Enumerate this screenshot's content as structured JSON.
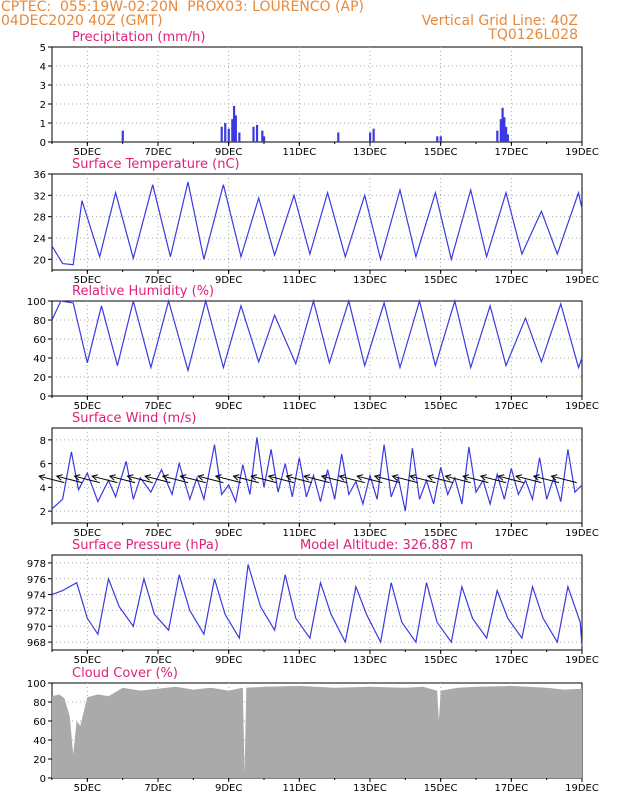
{
  "header": {
    "line1_left": "CPTEC:  055:19W-02:20N  PROX03: LOURENCO (AP)",
    "line2_left": "04DEC2020 40Z (GMT)",
    "line2_right": "Vertical Grid Line: 40Z",
    "line3_right": "TQ0126L028"
  },
  "colors": {
    "header": "#e8883a",
    "title": "#e0207a",
    "series": "#3a3ae0",
    "cloud": "#aaaaaa"
  },
  "x_axis": {
    "ticks": [
      {
        "day": 5,
        "label": "5DEC"
      },
      {
        "day": 7,
        "label": "7DEC"
      },
      {
        "day": 9,
        "label": "9DEC"
      },
      {
        "day": 11,
        "label": "11DEC"
      },
      {
        "day": 13,
        "label": "13DEC"
      },
      {
        "day": 15,
        "label": "15DEC"
      },
      {
        "day": 17,
        "label": "17DEC"
      },
      {
        "day": 19,
        "label": "19DEC"
      }
    ],
    "range": [
      4,
      19
    ]
  },
  "chart_data": [
    {
      "type": "bar",
      "title": "Precipitation (mm/h)",
      "ylim": [
        0,
        5
      ],
      "yticks": [
        0,
        1,
        2,
        3,
        4,
        5
      ],
      "grid": true,
      "x": [
        6.0,
        8.8,
        8.9,
        9.0,
        9.1,
        9.15,
        9.2,
        9.3,
        9.7,
        9.8,
        9.95,
        10.0,
        12.1,
        13.0,
        13.1,
        14.9,
        15.0,
        16.6,
        16.7,
        16.75,
        16.8,
        16.85,
        16.9
      ],
      "values": [
        0.6,
        0.8,
        1.0,
        0.7,
        1.2,
        1.9,
        1.4,
        0.5,
        0.8,
        0.9,
        0.6,
        0.3,
        0.5,
        0.5,
        0.7,
        0.3,
        0.3,
        0.6,
        1.2,
        1.8,
        1.3,
        0.8,
        0.4
      ]
    },
    {
      "type": "line",
      "title": "Surface Temperature (nC)",
      "ylim": [
        18,
        36
      ],
      "yticks": [
        20,
        24,
        28,
        32,
        36
      ],
      "grid": true,
      "x": [
        4.0,
        4.3,
        4.6,
        4.85,
        5.35,
        5.8,
        6.3,
        6.85,
        7.35,
        7.85,
        8.3,
        8.85,
        9.35,
        9.85,
        10.3,
        10.85,
        11.3,
        11.8,
        12.3,
        12.85,
        13.3,
        13.85,
        14.3,
        14.85,
        15.3,
        15.85,
        16.3,
        16.85,
        17.3,
        17.85,
        18.3,
        18.9,
        19.0
      ],
      "values": [
        22.5,
        19.2,
        19.0,
        31.0,
        20.5,
        32.5,
        20.2,
        34.0,
        20.5,
        34.5,
        20.0,
        34.0,
        20.5,
        31.5,
        20.8,
        32.0,
        21.0,
        32.5,
        20.5,
        32.0,
        20.0,
        33.0,
        20.5,
        32.5,
        20.0,
        33.0,
        20.5,
        32.5,
        21.0,
        29.0,
        21.0,
        32.5,
        29.5
      ]
    },
    {
      "type": "line",
      "title": "Relative Humidity (%)",
      "ylim": [
        0,
        100
      ],
      "yticks": [
        0,
        20,
        40,
        60,
        80,
        100
      ],
      "grid": true,
      "x": [
        4.0,
        4.25,
        4.6,
        5.0,
        5.4,
        5.85,
        6.3,
        6.8,
        7.3,
        7.85,
        8.35,
        8.85,
        9.35,
        9.85,
        10.3,
        10.9,
        11.4,
        11.85,
        12.4,
        12.85,
        13.4,
        13.85,
        14.4,
        14.85,
        15.4,
        15.85,
        16.4,
        16.85,
        17.4,
        17.85,
        18.4,
        18.9,
        19.0
      ],
      "values": [
        80,
        100,
        98,
        35,
        95,
        32,
        100,
        30,
        100,
        27,
        100,
        30,
        95,
        36,
        85,
        34,
        100,
        35,
        100,
        32,
        98,
        30,
        100,
        32,
        100,
        30,
        95,
        32,
        82,
        36,
        97,
        30,
        40
      ]
    },
    {
      "type": "line",
      "title": "Surface Wind (m/s)",
      "ylim": [
        1,
        9
      ],
      "yticks": [
        2,
        4,
        6,
        8
      ],
      "grid": true,
      "x": [
        4.0,
        4.3,
        4.55,
        4.75,
        5.0,
        5.3,
        5.6,
        5.8,
        6.1,
        6.3,
        6.5,
        6.8,
        7.1,
        7.4,
        7.6,
        7.9,
        8.1,
        8.3,
        8.6,
        8.8,
        9.0,
        9.2,
        9.4,
        9.6,
        9.8,
        10.0,
        10.2,
        10.4,
        10.6,
        10.8,
        11.0,
        11.2,
        11.4,
        11.6,
        11.8,
        12.0,
        12.2,
        12.4,
        12.6,
        12.8,
        13.0,
        13.2,
        13.4,
        13.6,
        13.8,
        14.0,
        14.2,
        14.4,
        14.6,
        14.8,
        15.0,
        15.2,
        15.4,
        15.6,
        15.8,
        16.0,
        16.2,
        16.4,
        16.6,
        16.8,
        17.0,
        17.2,
        17.4,
        17.6,
        17.8,
        18.0,
        18.2,
        18.4,
        18.6,
        18.8,
        19.0
      ],
      "values": [
        2.2,
        3.0,
        7.0,
        3.8,
        5.2,
        2.8,
        4.6,
        3.2,
        6.2,
        3.0,
        4.8,
        3.6,
        5.5,
        3.4,
        6.0,
        3.0,
        4.8,
        3.0,
        7.6,
        3.4,
        4.2,
        2.8,
        5.9,
        3.4,
        8.2,
        4.0,
        7.2,
        3.6,
        6.0,
        3.2,
        6.5,
        3.2,
        5.0,
        2.8,
        5.5,
        3.0,
        6.8,
        3.4,
        4.5,
        2.6,
        5.0,
        3.0,
        7.6,
        3.2,
        4.8,
        2.0,
        7.3,
        3.0,
        4.6,
        2.6,
        5.7,
        3.4,
        4.8,
        2.6,
        7.4,
        3.6,
        4.6,
        2.6,
        5.1,
        3.0,
        5.6,
        3.4,
        4.6,
        3.0,
        6.5,
        3.0,
        4.8,
        2.8,
        7.2,
        3.6,
        4.2
      ]
    },
    {
      "type": "line",
      "title": "Surface Pressure (hPa)",
      "annotation": "Model Altitude: 326.887  m",
      "ylim": [
        967,
        979
      ],
      "yticks": [
        968,
        970,
        972,
        974,
        976,
        978
      ],
      "grid": true,
      "x": [
        4.0,
        4.3,
        4.7,
        5.0,
        5.3,
        5.6,
        5.9,
        6.3,
        6.6,
        6.9,
        7.3,
        7.6,
        7.9,
        8.3,
        8.6,
        8.9,
        9.3,
        9.55,
        9.9,
        10.3,
        10.6,
        10.9,
        11.3,
        11.6,
        11.9,
        12.3,
        12.6,
        12.9,
        13.3,
        13.6,
        13.9,
        14.3,
        14.6,
        14.9,
        15.3,
        15.6,
        15.9,
        16.3,
        16.6,
        16.9,
        17.3,
        17.6,
        17.9,
        18.3,
        18.6,
        18.95,
        19.0
      ],
      "values": [
        974.0,
        974.5,
        975.5,
        971.0,
        969.0,
        976.0,
        972.5,
        970.0,
        976.0,
        971.5,
        969.5,
        976.5,
        972.0,
        969.0,
        976.0,
        971.5,
        968.5,
        977.8,
        972.5,
        969.5,
        976.5,
        971.0,
        968.5,
        975.5,
        971.5,
        968.0,
        975.0,
        971.5,
        968.0,
        975.5,
        970.5,
        968.0,
        975.5,
        970.5,
        968.0,
        975.0,
        971.0,
        968.5,
        974.5,
        971.0,
        968.5,
        975.0,
        971.0,
        968.0,
        975.0,
        970.5,
        967.5
      ]
    },
    {
      "type": "area",
      "title": "Cloud Cover (%)",
      "ylim": [
        0,
        100
      ],
      "yticks": [
        0,
        20,
        40,
        60,
        80,
        100
      ],
      "grid": true,
      "x": [
        4.0,
        4.2,
        4.35,
        4.5,
        4.6,
        4.7,
        4.8,
        5.0,
        5.3,
        5.6,
        6.0,
        6.5,
        7.0,
        7.5,
        8.0,
        8.5,
        9.0,
        9.4,
        9.45,
        9.5,
        10.0,
        11.0,
        12.0,
        13.0,
        14.0,
        14.5,
        14.9,
        14.95,
        15.0,
        15.5,
        16.0,
        17.0,
        18.0,
        18.5,
        19.0
      ],
      "values": [
        86,
        88,
        84,
        65,
        25,
        60,
        55,
        85,
        88,
        86,
        95,
        92,
        94,
        96,
        93,
        95,
        92,
        95,
        5,
        95,
        96,
        97,
        95,
        96,
        95,
        96,
        92,
        60,
        92,
        95,
        96,
        97,
        95,
        93,
        94
      ]
    }
  ]
}
